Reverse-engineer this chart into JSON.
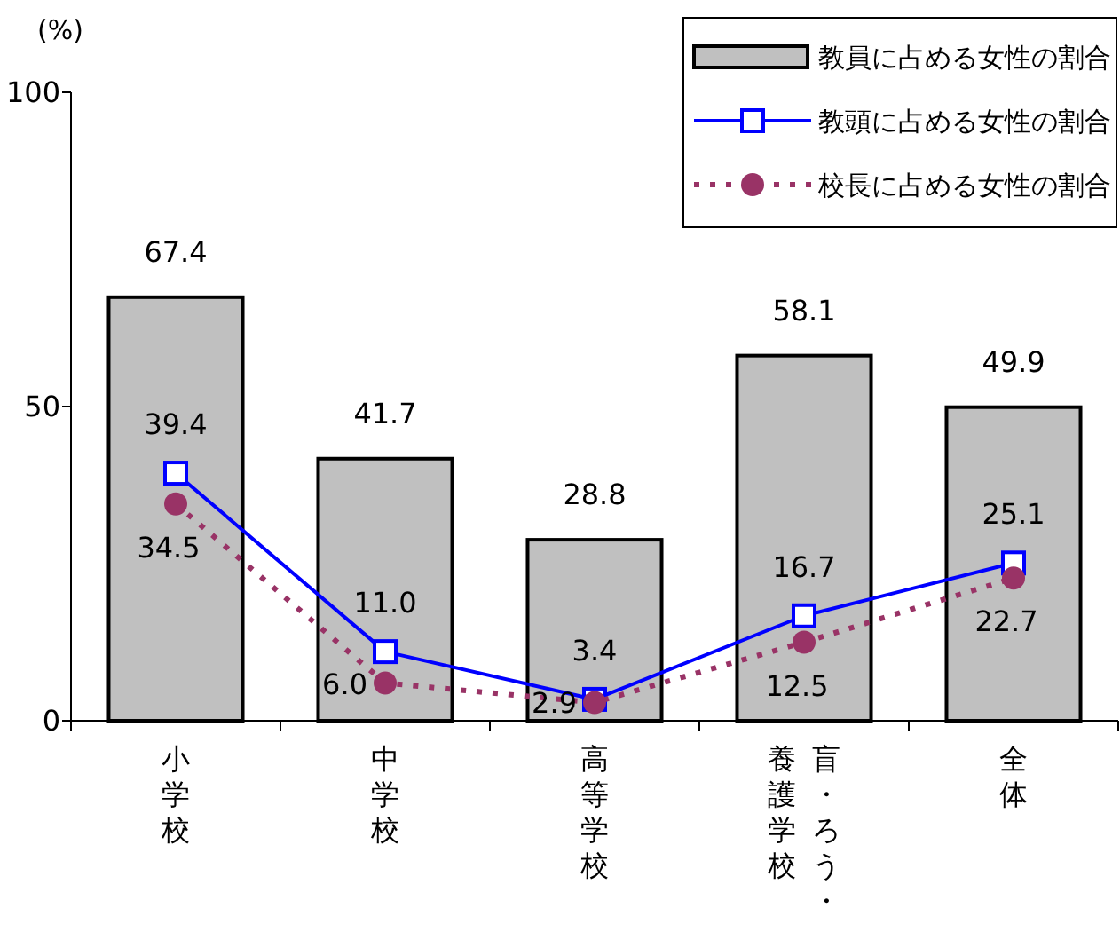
{
  "chart_data": {
    "type": "bar",
    "ylabel": "(%)",
    "categories": [
      "小学校",
      "中学校",
      "高等学校",
      "盲・ろう・養護学校",
      "全体"
    ],
    "series": [
      {
        "name": "教員に占める女性の割合",
        "type": "bar",
        "color": "#c0c0c0",
        "values": [
          67.4,
          41.7,
          28.8,
          58.1,
          49.9
        ]
      },
      {
        "name": "教頭に占める女性の割合",
        "type": "line",
        "color": "#0000ff",
        "marker": "square",
        "line_style": "solid",
        "values": [
          39.4,
          11.0,
          3.4,
          16.7,
          25.1
        ],
        "value_labels": [
          "39.4",
          "11.0",
          "3.4",
          "16.7",
          "25.1"
        ]
      },
      {
        "name": "校長に占める女性の割合",
        "type": "line",
        "color": "#993366",
        "marker": "circle",
        "line_style": "dotted",
        "values": [
          34.5,
          6.0,
          2.9,
          12.5,
          22.7
        ],
        "value_labels": [
          "34.5",
          "6.0",
          "2.9",
          "12.5",
          "22.7"
        ]
      }
    ],
    "ylim": [
      0,
      100
    ],
    "yticks": [
      0,
      50,
      100
    ],
    "grid": false,
    "legend": "top right",
    "data_labels": true
  }
}
